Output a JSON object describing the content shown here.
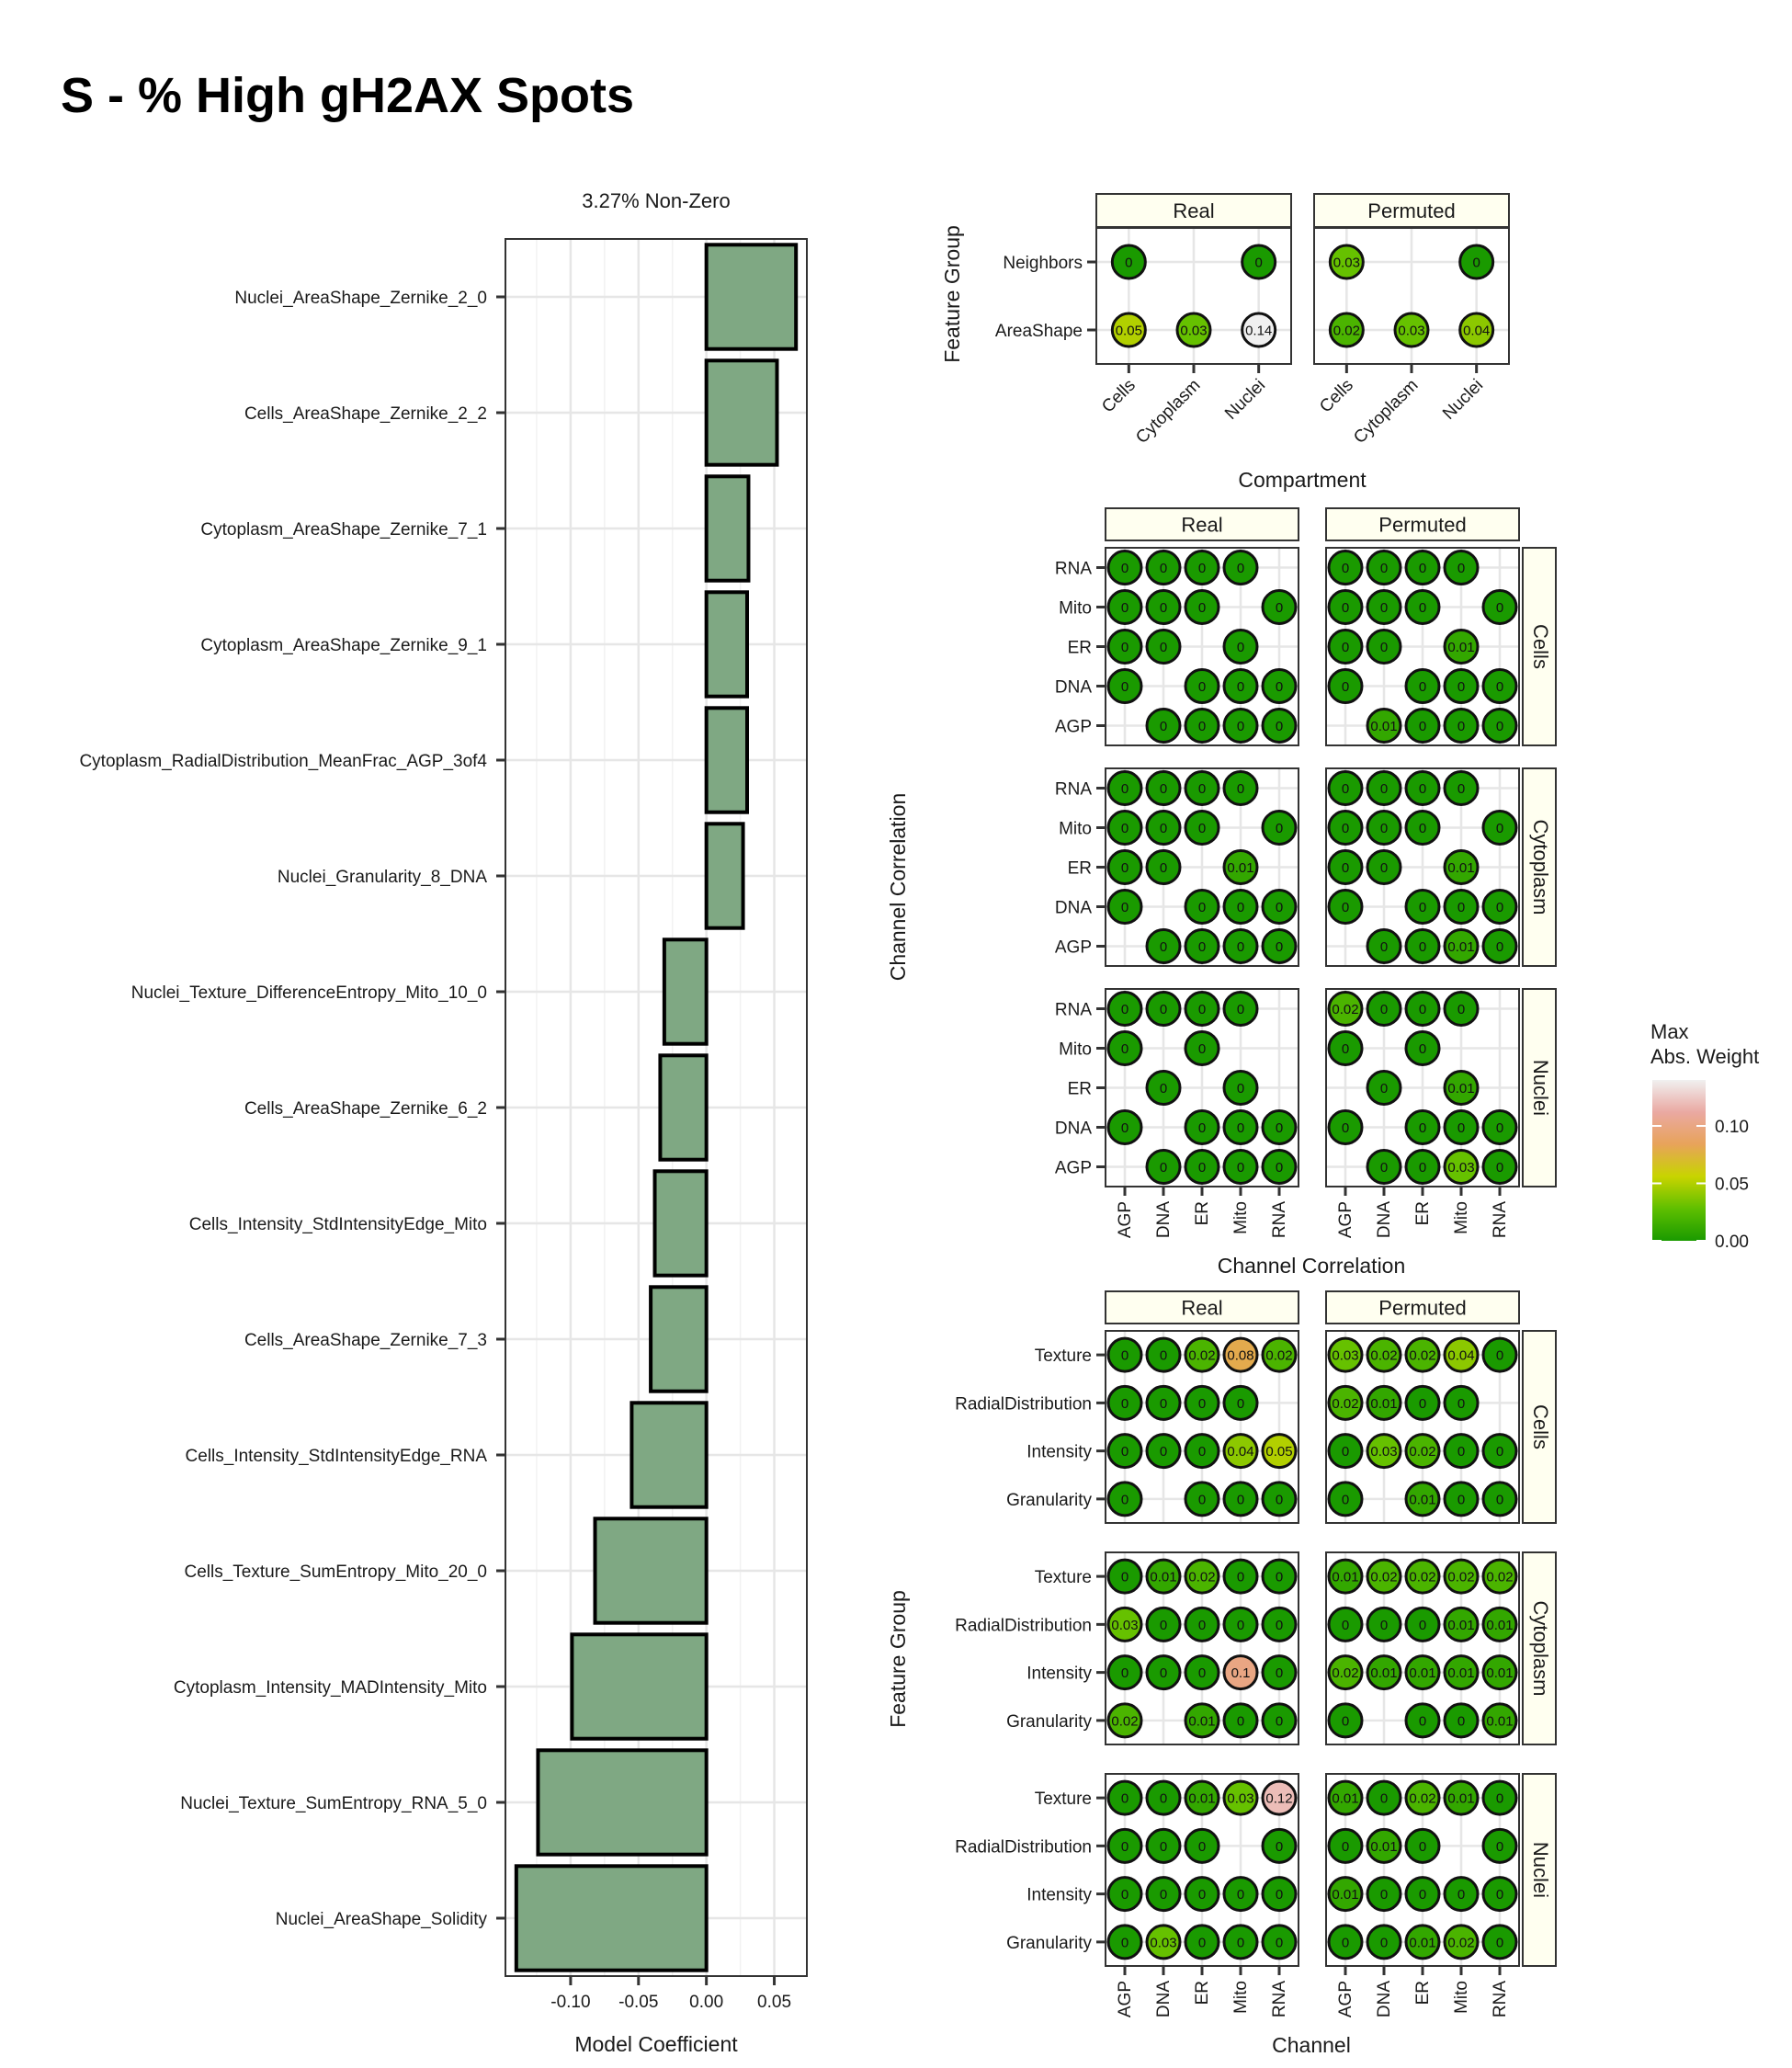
{
  "title": "S - % High gH2AX Spots",
  "colors": {
    "bar_fill": "#7fa883",
    "bar_stroke": "#000000",
    "strip_fill": "#fffff0",
    "grid": "#e6e6e6",
    "gradient": [
      "#1a9a00",
      "#5fbf00",
      "#c8d400",
      "#e8a35a",
      "#eaa9a2",
      "#f0f0f0"
    ]
  },
  "chart_data": [
    {
      "type": "bar",
      "orientation": "horizontal",
      "subtitle": "3.27% Non-Zero",
      "xlabel": "Model Coefficient",
      "ylabel": "",
      "xlim": [
        -0.148,
        0.074
      ],
      "xticks": [
        -0.1,
        -0.05,
        0.0,
        0.05
      ],
      "xtick_labels": [
        "-0.10",
        "-0.05",
        "0.00",
        "0.05"
      ],
      "categories": [
        "Nuclei_AreaShape_Zernike_2_0",
        "Cells_AreaShape_Zernike_2_2",
        "Cytoplasm_AreaShape_Zernike_7_1",
        "Cytoplasm_AreaShape_Zernike_9_1",
        "Cytoplasm_RadialDistribution_MeanFrac_AGP_3of4",
        "Nuclei_Granularity_8_DNA",
        "Nuclei_Texture_DifferenceEntropy_Mito_10_0",
        "Cells_AreaShape_Zernike_6_2",
        "Cells_Intensity_StdIntensityEdge_Mito",
        "Cells_AreaShape_Zernike_7_3",
        "Cells_Intensity_StdIntensityEdge_RNA",
        "Cells_Texture_SumEntropy_Mito_20_0",
        "Cytoplasm_Intensity_MADIntensity_Mito",
        "Nuclei_Texture_SumEntropy_RNA_5_0",
        "Nuclei_AreaShape_Solidity"
      ],
      "values": [
        0.066,
        0.052,
        0.031,
        0.03,
        0.03,
        0.027,
        -0.031,
        -0.034,
        -0.038,
        -0.041,
        -0.055,
        -0.082,
        -0.099,
        -0.124,
        -0.14
      ],
      "grid": true
    },
    {
      "type": "scatter",
      "subtype": "dot-grid",
      "panels": [
        "Real",
        "Permuted"
      ],
      "xlabel": "Compartment",
      "ylabel": "Feature Group",
      "x_categories": [
        "Cells",
        "Cytoplasm",
        "Nuclei"
      ],
      "y_categories": [
        "AreaShape",
        "Neighbors"
      ],
      "points": {
        "Real": [
          {
            "x": "Cells",
            "y": "AreaShape",
            "value": 0.05
          },
          {
            "x": "Cytoplasm",
            "y": "AreaShape",
            "value": 0.03
          },
          {
            "x": "Nuclei",
            "y": "AreaShape",
            "value": 0.14
          },
          {
            "x": "Cells",
            "y": "Neighbors",
            "value": 0
          },
          {
            "x": "Nuclei",
            "y": "Neighbors",
            "value": 0
          }
        ],
        "Permuted": [
          {
            "x": "Cells",
            "y": "AreaShape",
            "value": 0.02
          },
          {
            "x": "Cytoplasm",
            "y": "AreaShape",
            "value": 0.03
          },
          {
            "x": "Nuclei",
            "y": "AreaShape",
            "value": 0.04
          },
          {
            "x": "Cells",
            "y": "Neighbors",
            "value": 0.03
          },
          {
            "x": "Nuclei",
            "y": "Neighbors",
            "value": 0
          }
        ]
      }
    },
    {
      "type": "scatter",
      "subtype": "dot-grid",
      "columns": [
        "Real",
        "Permuted"
      ],
      "rows": [
        "Cells",
        "Cytoplasm",
        "Nuclei"
      ],
      "xlabel": "Channel Correlation",
      "ylabel": "Channel Correlation",
      "x_categories": [
        "AGP",
        "DNA",
        "ER",
        "Mito",
        "RNA"
      ],
      "y_categories": [
        "AGP",
        "DNA",
        "ER",
        "Mito",
        "RNA"
      ],
      "panels": {
        "Cells": {
          "Real": {
            "RNA": [
              "0",
              "0",
              "0",
              "0",
              ""
            ],
            "Mito": [
              "0",
              "0",
              "0",
              "",
              "0"
            ],
            "ER": [
              "0",
              "0",
              "",
              "0",
              ""
            ],
            "DNA": [
              "0",
              "",
              "0",
              "0",
              "0"
            ],
            "AGP": [
              "",
              "0",
              "0",
              "0",
              "0"
            ]
          },
          "Permuted": {
            "RNA": [
              "0",
              "0",
              "0",
              "0",
              ""
            ],
            "Mito": [
              "0",
              "0",
              "0",
              "",
              "0"
            ],
            "ER": [
              "0",
              "0",
              "",
              "0.01",
              ""
            ],
            "DNA": [
              "0",
              "",
              "0",
              "0",
              "0"
            ],
            "AGP": [
              "",
              "0.01",
              "0",
              "0",
              "0"
            ]
          }
        },
        "Cytoplasm": {
          "Real": {
            "RNA": [
              "0",
              "0",
              "0",
              "0",
              ""
            ],
            "Mito": [
              "0",
              "0",
              "0",
              "",
              "0"
            ],
            "ER": [
              "0",
              "0",
              "",
              "0.01",
              ""
            ],
            "DNA": [
              "0",
              "",
              "0",
              "0",
              "0"
            ],
            "AGP": [
              "",
              "0",
              "0",
              "0",
              "0"
            ]
          },
          "Permuted": {
            "RNA": [
              "0",
              "0",
              "0",
              "0",
              ""
            ],
            "Mito": [
              "0",
              "0",
              "0",
              "",
              "0"
            ],
            "ER": [
              "0",
              "0",
              "",
              "0.01",
              ""
            ],
            "DNA": [
              "0",
              "",
              "0",
              "0",
              "0"
            ],
            "AGP": [
              "",
              "0",
              "0",
              "0.01",
              "0"
            ]
          }
        },
        "Nuclei": {
          "Real": {
            "RNA": [
              "0",
              "0",
              "0",
              "0",
              ""
            ],
            "Mito": [
              "0",
              "",
              "0",
              "",
              ""
            ],
            "ER": [
              "",
              "0",
              "",
              "0",
              ""
            ],
            "DNA": [
              "0",
              "",
              "0",
              "0",
              "0"
            ],
            "AGP": [
              "",
              "0",
              "0",
              "0",
              "0"
            ]
          },
          "Permuted": {
            "RNA": [
              "0.02",
              "0",
              "0",
              "0",
              ""
            ],
            "Mito": [
              "0",
              "",
              "0",
              "",
              ""
            ],
            "ER": [
              "",
              "0",
              "",
              "0.01",
              ""
            ],
            "DNA": [
              "0",
              "",
              "0",
              "0",
              "0"
            ],
            "AGP": [
              "",
              "0",
              "0",
              "0.03",
              "0"
            ]
          }
        }
      }
    },
    {
      "type": "scatter",
      "subtype": "dot-grid",
      "columns": [
        "Real",
        "Permuted"
      ],
      "rows": [
        "Cells",
        "Cytoplasm",
        "Nuclei"
      ],
      "xlabel": "Channel",
      "ylabel": "Feature Group",
      "x_categories": [
        "AGP",
        "DNA",
        "ER",
        "Mito",
        "RNA"
      ],
      "y_categories": [
        "Granularity",
        "Intensity",
        "RadialDistribution",
        "Texture"
      ],
      "panels": {
        "Cells": {
          "Real": {
            "Texture": [
              "0",
              "0",
              "0.02",
              "0.08",
              "0.02"
            ],
            "RadialDistribution": [
              "0",
              "0",
              "0",
              "0",
              ""
            ],
            "Intensity": [
              "0",
              "0",
              "0",
              "0.04",
              "0.05"
            ],
            "Granularity": [
              "0",
              "",
              "0",
              "0",
              "0"
            ]
          },
          "Permuted": {
            "Texture": [
              "0.03",
              "0.02",
              "0.02",
              "0.04",
              "0"
            ],
            "RadialDistribution": [
              "0.02",
              "0.01",
              "0",
              "0",
              ""
            ],
            "Intensity": [
              "0",
              "0.03",
              "0.02",
              "0",
              "0"
            ],
            "Granularity": [
              "0",
              "",
              "0.01",
              "0",
              "0"
            ]
          }
        },
        "Cytoplasm": {
          "Real": {
            "Texture": [
              "0",
              "0.01",
              "0.02",
              "0",
              "0"
            ],
            "RadialDistribution": [
              "0.03",
              "0",
              "0",
              "0",
              "0"
            ],
            "Intensity": [
              "0",
              "0",
              "0",
              "0.1",
              "0"
            ],
            "Granularity": [
              "0.02",
              "",
              "0.01",
              "0",
              "0"
            ]
          },
          "Permuted": {
            "Texture": [
              "0.01",
              "0.02",
              "0.02",
              "0.02",
              "0.02"
            ],
            "RadialDistribution": [
              "0",
              "0",
              "0",
              "0.01",
              "0.01"
            ],
            "Intensity": [
              "0.02",
              "0.01",
              "0.01",
              "0.01",
              "0.01"
            ],
            "Granularity": [
              "0",
              "",
              "0",
              "0",
              "0.01"
            ]
          }
        },
        "Nuclei": {
          "Real": {
            "Texture": [
              "0",
              "0",
              "0.01",
              "0.03",
              "0.12"
            ],
            "RadialDistribution": [
              "0",
              "0",
              "0",
              "",
              "0"
            ],
            "Intensity": [
              "0",
              "0",
              "0",
              "0",
              "0"
            ],
            "Granularity": [
              "0",
              "0.03",
              "0",
              "0",
              "0"
            ]
          },
          "Permuted": {
            "Texture": [
              "0.01",
              "0",
              "0.02",
              "0.01",
              "0"
            ],
            "RadialDistribution": [
              "0",
              "0.01",
              "0",
              "",
              "0"
            ],
            "Intensity": [
              "0.01",
              "0",
              "0",
              "0",
              "0"
            ],
            "Granularity": [
              "0",
              "0",
              "0.01",
              "0.02",
              "0"
            ]
          }
        }
      }
    }
  ],
  "legend": {
    "title_line1": "Max",
    "title_line2": "Abs. Weight",
    "ticks": [
      0.0,
      0.05,
      0.1
    ],
    "tick_labels": [
      "0.00",
      "0.05",
      "0.10"
    ],
    "range": [
      0,
      0.14
    ]
  }
}
